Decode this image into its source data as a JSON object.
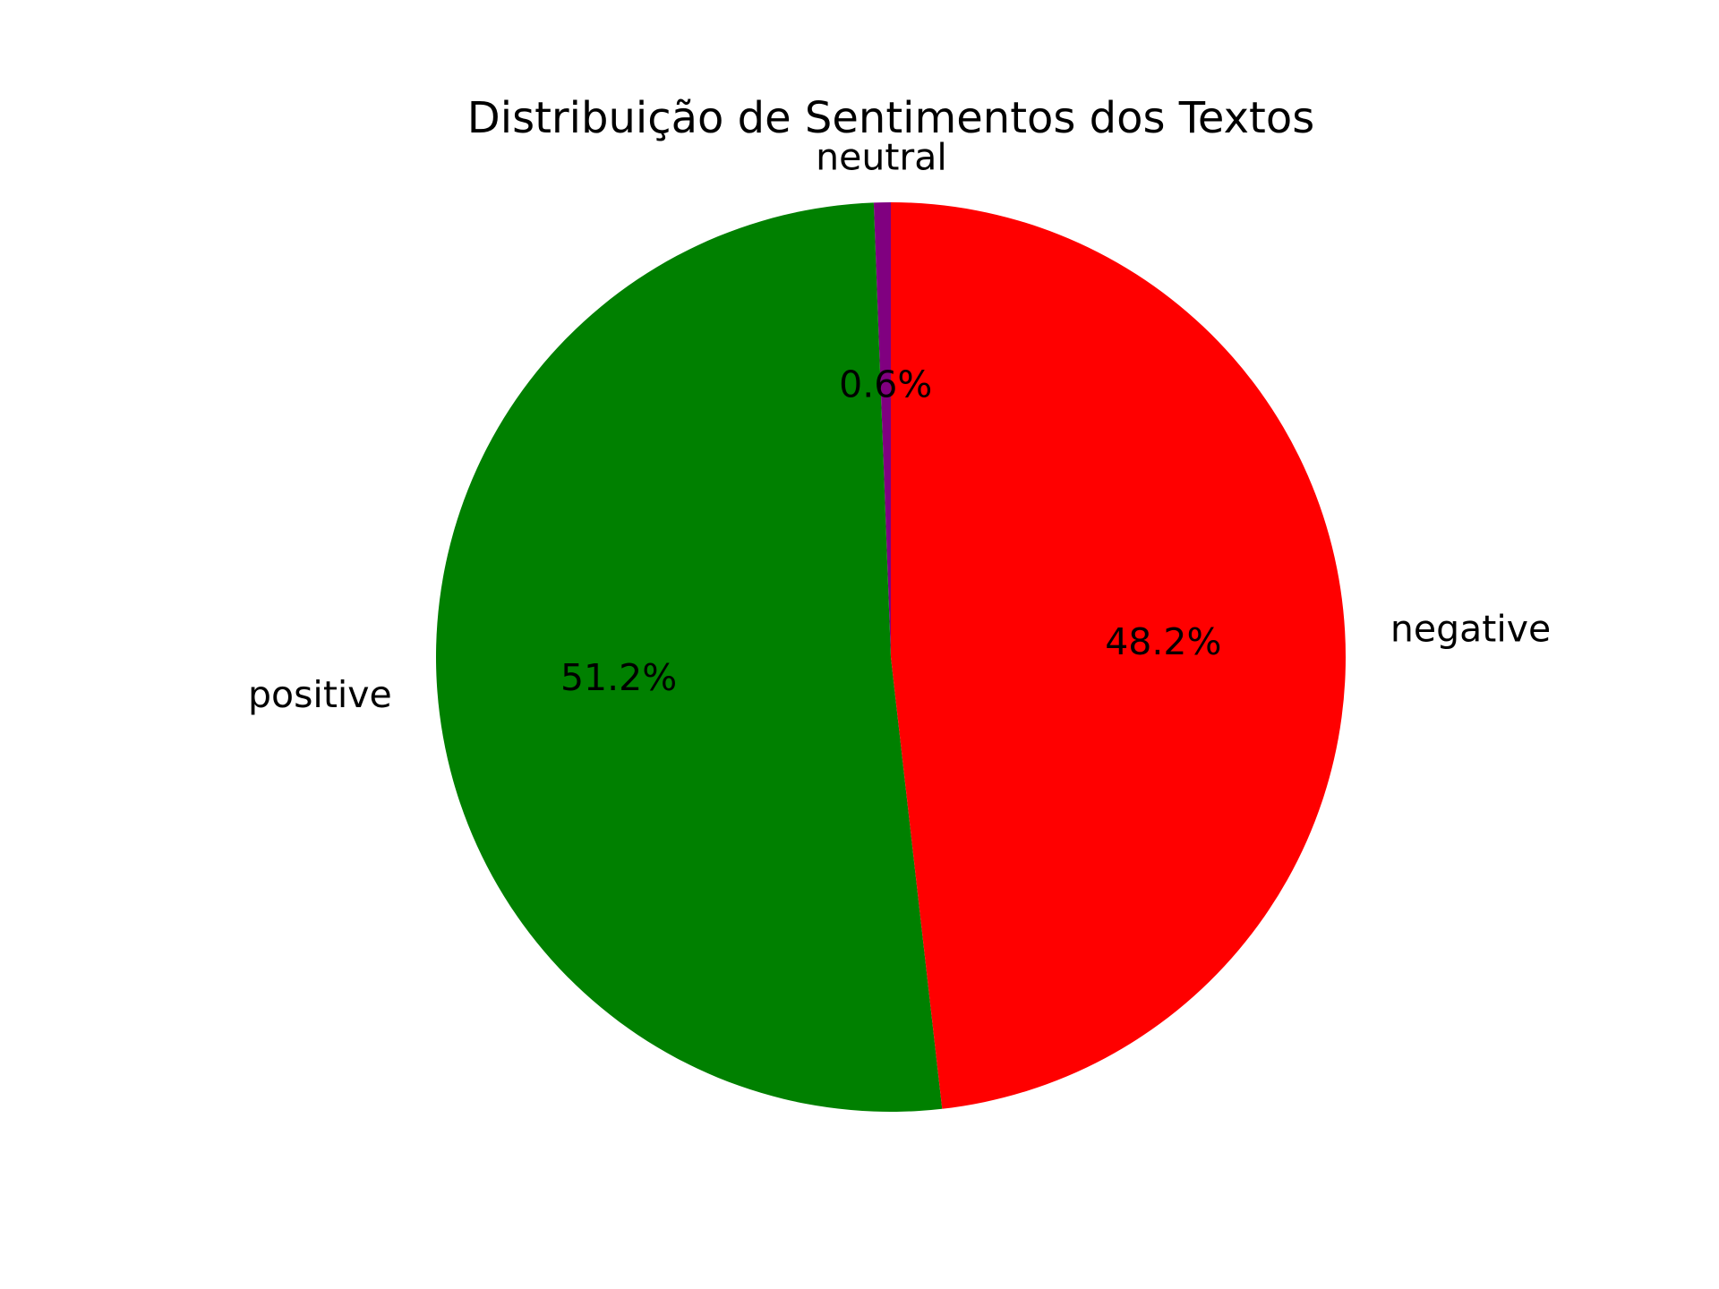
{
  "chart_data": {
    "type": "pie",
    "title": "Distribuição de Sentimentos dos Textos",
    "start_angle_deg": 90,
    "direction": "counterclockwise",
    "slices": [
      {
        "label": "neutral",
        "value": 0.6,
        "pct_label": "0.6%",
        "color": "#800080"
      },
      {
        "label": "positive",
        "value": 51.2,
        "pct_label": "51.2%",
        "color": "#008000"
      },
      {
        "label": "negative",
        "value": 48.2,
        "pct_label": "48.2%",
        "color": "#ff0000"
      }
    ]
  }
}
